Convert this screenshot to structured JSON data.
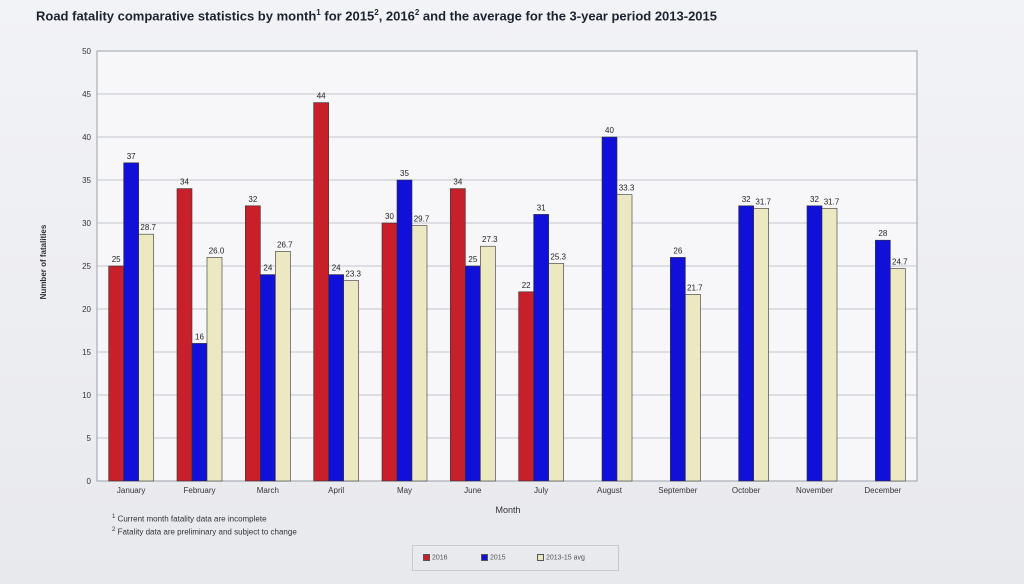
{
  "title": {
    "part1": "Road fatality comparative statistics by month",
    "sup1": "1",
    "part2": " for 2015",
    "sup2": "2",
    "part3": ", 2016",
    "sup3": "2",
    "part4": " and the average for the 3-year period 2013-2015"
  },
  "notes": {
    "line1_mark": "1",
    "line1": " Current month fatality data are incomplete",
    "line2_mark": "2",
    "line2": " Fatality data are preliminary and subject to change"
  },
  "legend": {
    "item_2016": "2016",
    "item_2015": "2015",
    "item_avg": "2013-15 avg"
  },
  "colors": {
    "s2016": "#c8202a",
    "s2015": "#1010d8",
    "avg": "#ece8c2",
    "grid": "#aeb4bf"
  },
  "chart_data": {
    "type": "bar",
    "ylabel": "Number of fatalities",
    "xlabel": "Month",
    "ylim": [
      0,
      50
    ],
    "yticks": [
      0,
      5,
      10,
      15,
      20,
      25,
      30,
      35,
      40,
      45,
      50
    ],
    "grid": true,
    "legend_position": "bottom",
    "categories": [
      "January",
      "February",
      "March",
      "April",
      "May",
      "June",
      "July",
      "August",
      "September",
      "October",
      "November",
      "December"
    ],
    "series": [
      {
        "name": "2016",
        "values": [
          25,
          34,
          32,
          44,
          30,
          34,
          22,
          null,
          null,
          null,
          null,
          null
        ],
        "labels": [
          "25",
          "34",
          "32",
          "44",
          "30",
          "34",
          "22",
          "",
          "",
          "",
          "",
          ""
        ]
      },
      {
        "name": "2015",
        "values": [
          37,
          16,
          24,
          24,
          35,
          25,
          31,
          40,
          26,
          32,
          32,
          28
        ],
        "labels": [
          "37",
          "16",
          "24",
          "24",
          "35",
          "25",
          "31",
          "40",
          "26",
          "32",
          "32",
          "28"
        ]
      },
      {
        "name": "2013-15 avg",
        "values": [
          28.7,
          26.0,
          26.7,
          23.3,
          29.7,
          27.3,
          25.3,
          33.3,
          21.7,
          31.7,
          31.7,
          24.7
        ],
        "labels": [
          "28.7",
          "26.0",
          "26.7",
          "23.3",
          "29.7",
          "27.3",
          "25.3",
          "33.3",
          "21.7",
          "31.7",
          "31.7",
          "24.7"
        ]
      }
    ]
  }
}
